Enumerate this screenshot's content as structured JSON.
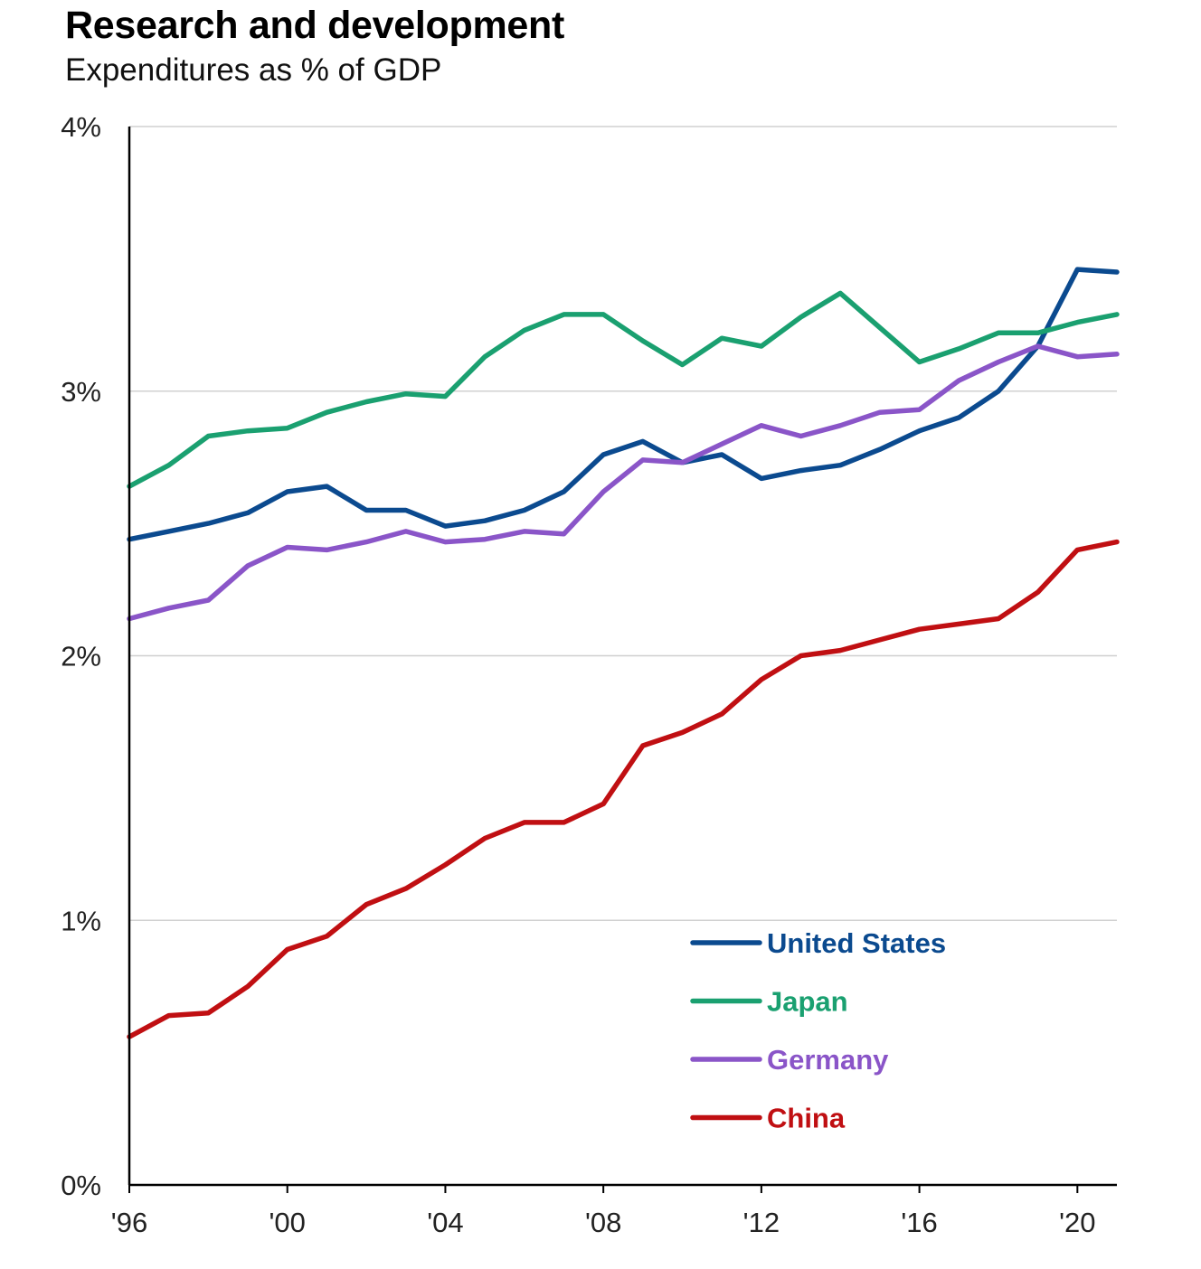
{
  "colors": {
    "United States": "#0b4a8f",
    "Japan": "#1aa070",
    "Germany": "#8a55c8",
    "China": "#c00f12",
    "grid": "#d0d0d0",
    "axis": "#000000"
  },
  "chart_data": {
    "type": "line",
    "title": "Research and development",
    "subtitle": "Expenditures as % of GDP",
    "xlabel": "",
    "ylabel": "",
    "xlim": [
      1996,
      2021
    ],
    "ylim": [
      0,
      4
    ],
    "y_ticks": [
      0,
      1,
      2,
      3,
      4
    ],
    "y_tick_labels": [
      "0%",
      "1%",
      "2%",
      "3%",
      "4%"
    ],
    "x_ticks": [
      1996,
      2000,
      2004,
      2008,
      2012,
      2016,
      2020
    ],
    "x_tick_labels": [
      "'96",
      "'00",
      "'04",
      "'08",
      "'12",
      "'16",
      "'20"
    ],
    "grid": "horizontal",
    "legend_position": "bottom-right",
    "x": [
      1996,
      1997,
      1998,
      1999,
      2000,
      2001,
      2002,
      2003,
      2004,
      2005,
      2006,
      2007,
      2008,
      2009,
      2010,
      2011,
      2012,
      2013,
      2014,
      2015,
      2016,
      2017,
      2018,
      2019,
      2020,
      2021
    ],
    "series": [
      {
        "name": "United States",
        "values": [
          2.44,
          2.47,
          2.5,
          2.54,
          2.62,
          2.64,
          2.55,
          2.55,
          2.49,
          2.51,
          2.55,
          2.62,
          2.76,
          2.81,
          2.73,
          2.76,
          2.67,
          2.7,
          2.72,
          2.78,
          2.85,
          2.9,
          3.0,
          3.17,
          3.46,
          3.45
        ]
      },
      {
        "name": "Japan",
        "values": [
          2.64,
          2.72,
          2.83,
          2.85,
          2.86,
          2.92,
          2.96,
          2.99,
          2.98,
          3.13,
          3.23,
          3.29,
          3.29,
          3.19,
          3.1,
          3.2,
          3.17,
          3.28,
          3.37,
          3.24,
          3.11,
          3.16,
          3.22,
          3.22,
          3.26,
          3.29
        ]
      },
      {
        "name": "Germany",
        "values": [
          2.14,
          2.18,
          2.21,
          2.34,
          2.41,
          2.4,
          2.43,
          2.47,
          2.43,
          2.44,
          2.47,
          2.46,
          2.62,
          2.74,
          2.73,
          2.8,
          2.87,
          2.83,
          2.87,
          2.92,
          2.93,
          3.04,
          3.11,
          3.17,
          3.13,
          3.14
        ]
      },
      {
        "name": "China",
        "values": [
          0.56,
          0.64,
          0.65,
          0.75,
          0.89,
          0.94,
          1.06,
          1.12,
          1.21,
          1.31,
          1.37,
          1.37,
          1.44,
          1.66,
          1.71,
          1.78,
          1.91,
          2.0,
          2.02,
          2.06,
          2.1,
          2.12,
          2.14,
          2.24,
          2.4,
          2.43
        ]
      }
    ]
  }
}
